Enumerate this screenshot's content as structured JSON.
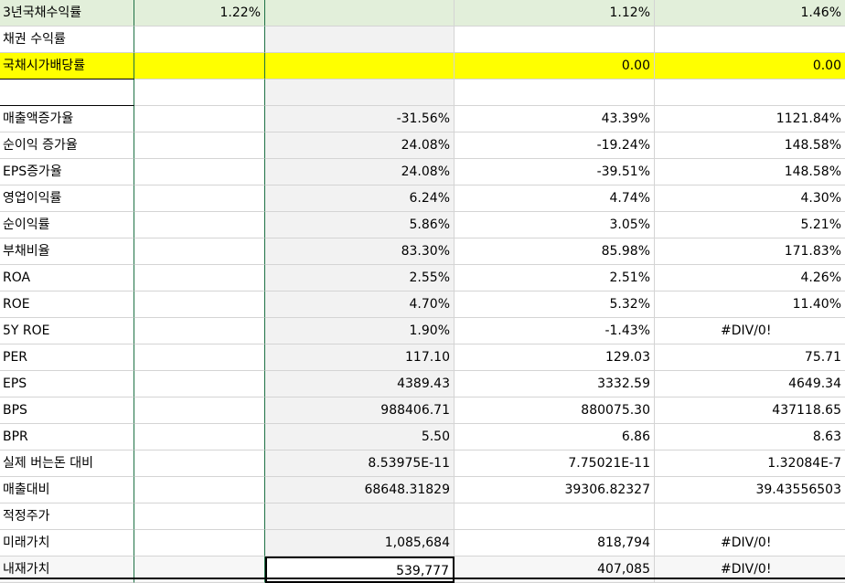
{
  "colors": {
    "header_fill": "#e2efda",
    "highlight_yellow": "#ffff00",
    "gray_fill": "#f2f2f2",
    "lighter_gray": "#f7f7f7",
    "selection_border": "#000000"
  },
  "rows": [
    {
      "label": "3년국채수익률",
      "b": "1.22%",
      "c": "",
      "d": "1.12%",
      "e": "1.46%"
    },
    {
      "label": "채권 수익률",
      "b": "",
      "c": "",
      "d": "",
      "e": ""
    },
    {
      "label": "국채시가배당률",
      "b": "",
      "c": "",
      "d": "0.00",
      "e": "0.00"
    },
    {
      "label": "",
      "b": "",
      "c": "",
      "d": "",
      "e": ""
    },
    {
      "label": "매출액증가율",
      "b": "",
      "c": "-31.56%",
      "d": "43.39%",
      "e": "1121.84%"
    },
    {
      "label": "순이익 증가율",
      "b": "",
      "c": "24.08%",
      "d": "-19.24%",
      "e": "148.58%"
    },
    {
      "label": "EPS증가율",
      "b": "",
      "c": "24.08%",
      "d": "-39.51%",
      "e": "148.58%"
    },
    {
      "label": "영업이익률",
      "b": "",
      "c": "6.24%",
      "d": "4.74%",
      "e": "4.30%"
    },
    {
      "label": "순이익률",
      "b": "",
      "c": "5.86%",
      "d": "3.05%",
      "e": "5.21%"
    },
    {
      "label": "부채비율",
      "b": "",
      "c": "83.30%",
      "d": "85.98%",
      "e": "171.83%"
    },
    {
      "label": "ROA",
      "b": "",
      "c": "2.55%",
      "d": "2.51%",
      "e": "4.26%"
    },
    {
      "label": "ROE",
      "b": "",
      "c": "4.70%",
      "d": "5.32%",
      "e": "11.40%"
    },
    {
      "label": "5Y ROE",
      "b": "",
      "c": "1.90%",
      "d": "-1.43%",
      "e": "#DIV/0!"
    },
    {
      "label": "PER",
      "b": "",
      "c": "117.10",
      "d": "129.03",
      "e": "75.71"
    },
    {
      "label": "EPS",
      "b": "",
      "c": "4389.43",
      "d": "3332.59",
      "e": "4649.34"
    },
    {
      "label": "BPS",
      "b": "",
      "c": "988406.71",
      "d": "880075.30",
      "e": "437118.65"
    },
    {
      "label": "BPR",
      "b": "",
      "c": "5.50",
      "d": "6.86",
      "e": "8.63"
    },
    {
      "label": "실제 버는돈 대비",
      "b": "",
      "c": "8.53975E-11",
      "d": "7.75021E-11",
      "e": "1.32084E-7"
    },
    {
      "label": "매출대비",
      "b": "",
      "c": "68648.31829",
      "d": "39306.82327",
      "e": "39.43556503"
    },
    {
      "label": "적정주가",
      "b": "",
      "c": "",
      "d": "",
      "e": ""
    },
    {
      "label": "미래가치",
      "b": "",
      "c": "1,085,684",
      "d": "818,794",
      "e": "#DIV/0!"
    },
    {
      "label": "내재가치",
      "b": "",
      "c": "539,777",
      "d": "407,085",
      "e": "#DIV/0!"
    }
  ]
}
